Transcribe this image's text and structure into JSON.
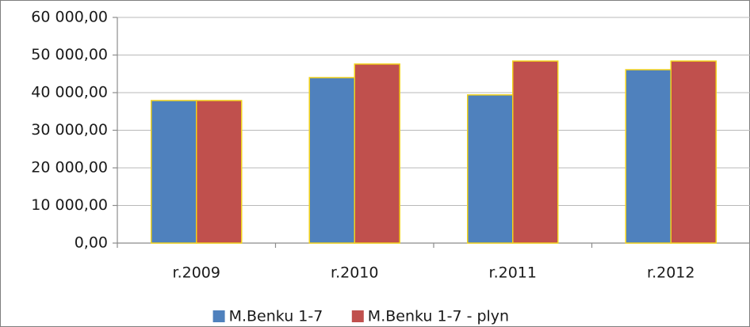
{
  "chart_data": {
    "type": "bar",
    "categories": [
      "r.2009",
      "r.2010",
      "r.2011",
      "r.2012"
    ],
    "series": [
      {
        "name": "M.Benku 1-7",
        "color": "#4f81bd",
        "values": [
          37900,
          44000,
          39400,
          46100
        ]
      },
      {
        "name": "M.Benku 1-7 - plyn",
        "color": "#c0504d",
        "values": [
          37900,
          47600,
          48400,
          48400
        ]
      }
    ],
    "bar_edge_color": "#f2d21b",
    "ylim": [
      0,
      60000
    ],
    "yticks": [
      {
        "value": 0,
        "label": "0,00"
      },
      {
        "value": 10000,
        "label": "10 000,00"
      },
      {
        "value": 20000,
        "label": "20 000,00"
      },
      {
        "value": 30000,
        "label": "30 000,00"
      },
      {
        "value": 40000,
        "label": "40 000,00"
      },
      {
        "value": 50000,
        "label": "50 000,00"
      },
      {
        "value": 60000,
        "label": "60 000,00"
      }
    ],
    "grid": true,
    "legend": "bottom"
  }
}
